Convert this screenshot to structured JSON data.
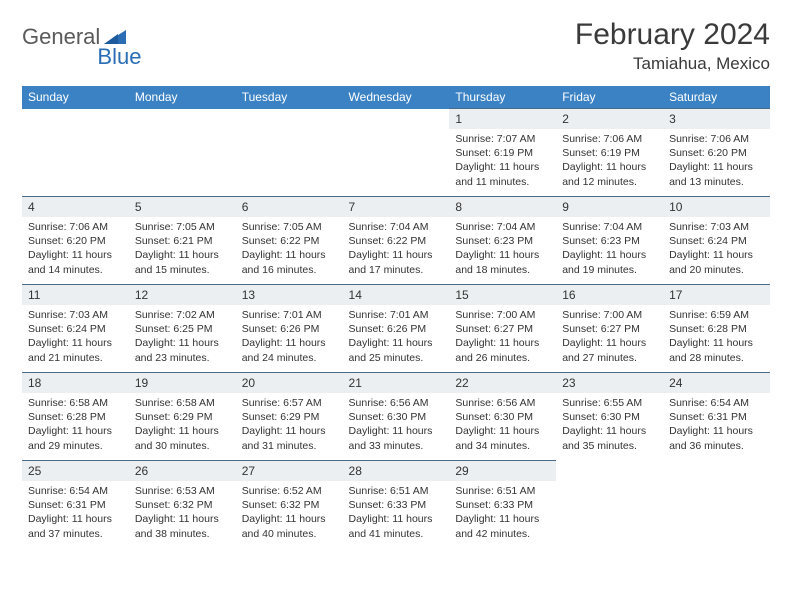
{
  "logo": {
    "part1": "General",
    "part2": "Blue"
  },
  "title": "February 2024",
  "location": "Tamiahua, Mexico",
  "colors": {
    "header_bg": "#3b82c4",
    "header_text": "#ffffff",
    "daynum_bg": "#eceff1",
    "border": "#4a6a8a",
    "logo_gray": "#5a5a5a",
    "logo_blue": "#2a6db5"
  },
  "weekdays": [
    "Sunday",
    "Monday",
    "Tuesday",
    "Wednesday",
    "Thursday",
    "Friday",
    "Saturday"
  ],
  "grid": {
    "first_weekday_index": 4,
    "days_in_month": 29
  },
  "days": {
    "1": {
      "sunrise": "7:07 AM",
      "sunset": "6:19 PM",
      "daylight": "11 hours and 11 minutes."
    },
    "2": {
      "sunrise": "7:06 AM",
      "sunset": "6:19 PM",
      "daylight": "11 hours and 12 minutes."
    },
    "3": {
      "sunrise": "7:06 AM",
      "sunset": "6:20 PM",
      "daylight": "11 hours and 13 minutes."
    },
    "4": {
      "sunrise": "7:06 AM",
      "sunset": "6:20 PM",
      "daylight": "11 hours and 14 minutes."
    },
    "5": {
      "sunrise": "7:05 AM",
      "sunset": "6:21 PM",
      "daylight": "11 hours and 15 minutes."
    },
    "6": {
      "sunrise": "7:05 AM",
      "sunset": "6:22 PM",
      "daylight": "11 hours and 16 minutes."
    },
    "7": {
      "sunrise": "7:04 AM",
      "sunset": "6:22 PM",
      "daylight": "11 hours and 17 minutes."
    },
    "8": {
      "sunrise": "7:04 AM",
      "sunset": "6:23 PM",
      "daylight": "11 hours and 18 minutes."
    },
    "9": {
      "sunrise": "7:04 AM",
      "sunset": "6:23 PM",
      "daylight": "11 hours and 19 minutes."
    },
    "10": {
      "sunrise": "7:03 AM",
      "sunset": "6:24 PM",
      "daylight": "11 hours and 20 minutes."
    },
    "11": {
      "sunrise": "7:03 AM",
      "sunset": "6:24 PM",
      "daylight": "11 hours and 21 minutes."
    },
    "12": {
      "sunrise": "7:02 AM",
      "sunset": "6:25 PM",
      "daylight": "11 hours and 23 minutes."
    },
    "13": {
      "sunrise": "7:01 AM",
      "sunset": "6:26 PM",
      "daylight": "11 hours and 24 minutes."
    },
    "14": {
      "sunrise": "7:01 AM",
      "sunset": "6:26 PM",
      "daylight": "11 hours and 25 minutes."
    },
    "15": {
      "sunrise": "7:00 AM",
      "sunset": "6:27 PM",
      "daylight": "11 hours and 26 minutes."
    },
    "16": {
      "sunrise": "7:00 AM",
      "sunset": "6:27 PM",
      "daylight": "11 hours and 27 minutes."
    },
    "17": {
      "sunrise": "6:59 AM",
      "sunset": "6:28 PM",
      "daylight": "11 hours and 28 minutes."
    },
    "18": {
      "sunrise": "6:58 AM",
      "sunset": "6:28 PM",
      "daylight": "11 hours and 29 minutes."
    },
    "19": {
      "sunrise": "6:58 AM",
      "sunset": "6:29 PM",
      "daylight": "11 hours and 30 minutes."
    },
    "20": {
      "sunrise": "6:57 AM",
      "sunset": "6:29 PM",
      "daylight": "11 hours and 31 minutes."
    },
    "21": {
      "sunrise": "6:56 AM",
      "sunset": "6:30 PM",
      "daylight": "11 hours and 33 minutes."
    },
    "22": {
      "sunrise": "6:56 AM",
      "sunset": "6:30 PM",
      "daylight": "11 hours and 34 minutes."
    },
    "23": {
      "sunrise": "6:55 AM",
      "sunset": "6:30 PM",
      "daylight": "11 hours and 35 minutes."
    },
    "24": {
      "sunrise": "6:54 AM",
      "sunset": "6:31 PM",
      "daylight": "11 hours and 36 minutes."
    },
    "25": {
      "sunrise": "6:54 AM",
      "sunset": "6:31 PM",
      "daylight": "11 hours and 37 minutes."
    },
    "26": {
      "sunrise": "6:53 AM",
      "sunset": "6:32 PM",
      "daylight": "11 hours and 38 minutes."
    },
    "27": {
      "sunrise": "6:52 AM",
      "sunset": "6:32 PM",
      "daylight": "11 hours and 40 minutes."
    },
    "28": {
      "sunrise": "6:51 AM",
      "sunset": "6:33 PM",
      "daylight": "11 hours and 41 minutes."
    },
    "29": {
      "sunrise": "6:51 AM",
      "sunset": "6:33 PM",
      "daylight": "11 hours and 42 minutes."
    }
  },
  "labels": {
    "sunrise_prefix": "Sunrise: ",
    "sunset_prefix": "Sunset: ",
    "daylight_prefix": "Daylight: "
  }
}
